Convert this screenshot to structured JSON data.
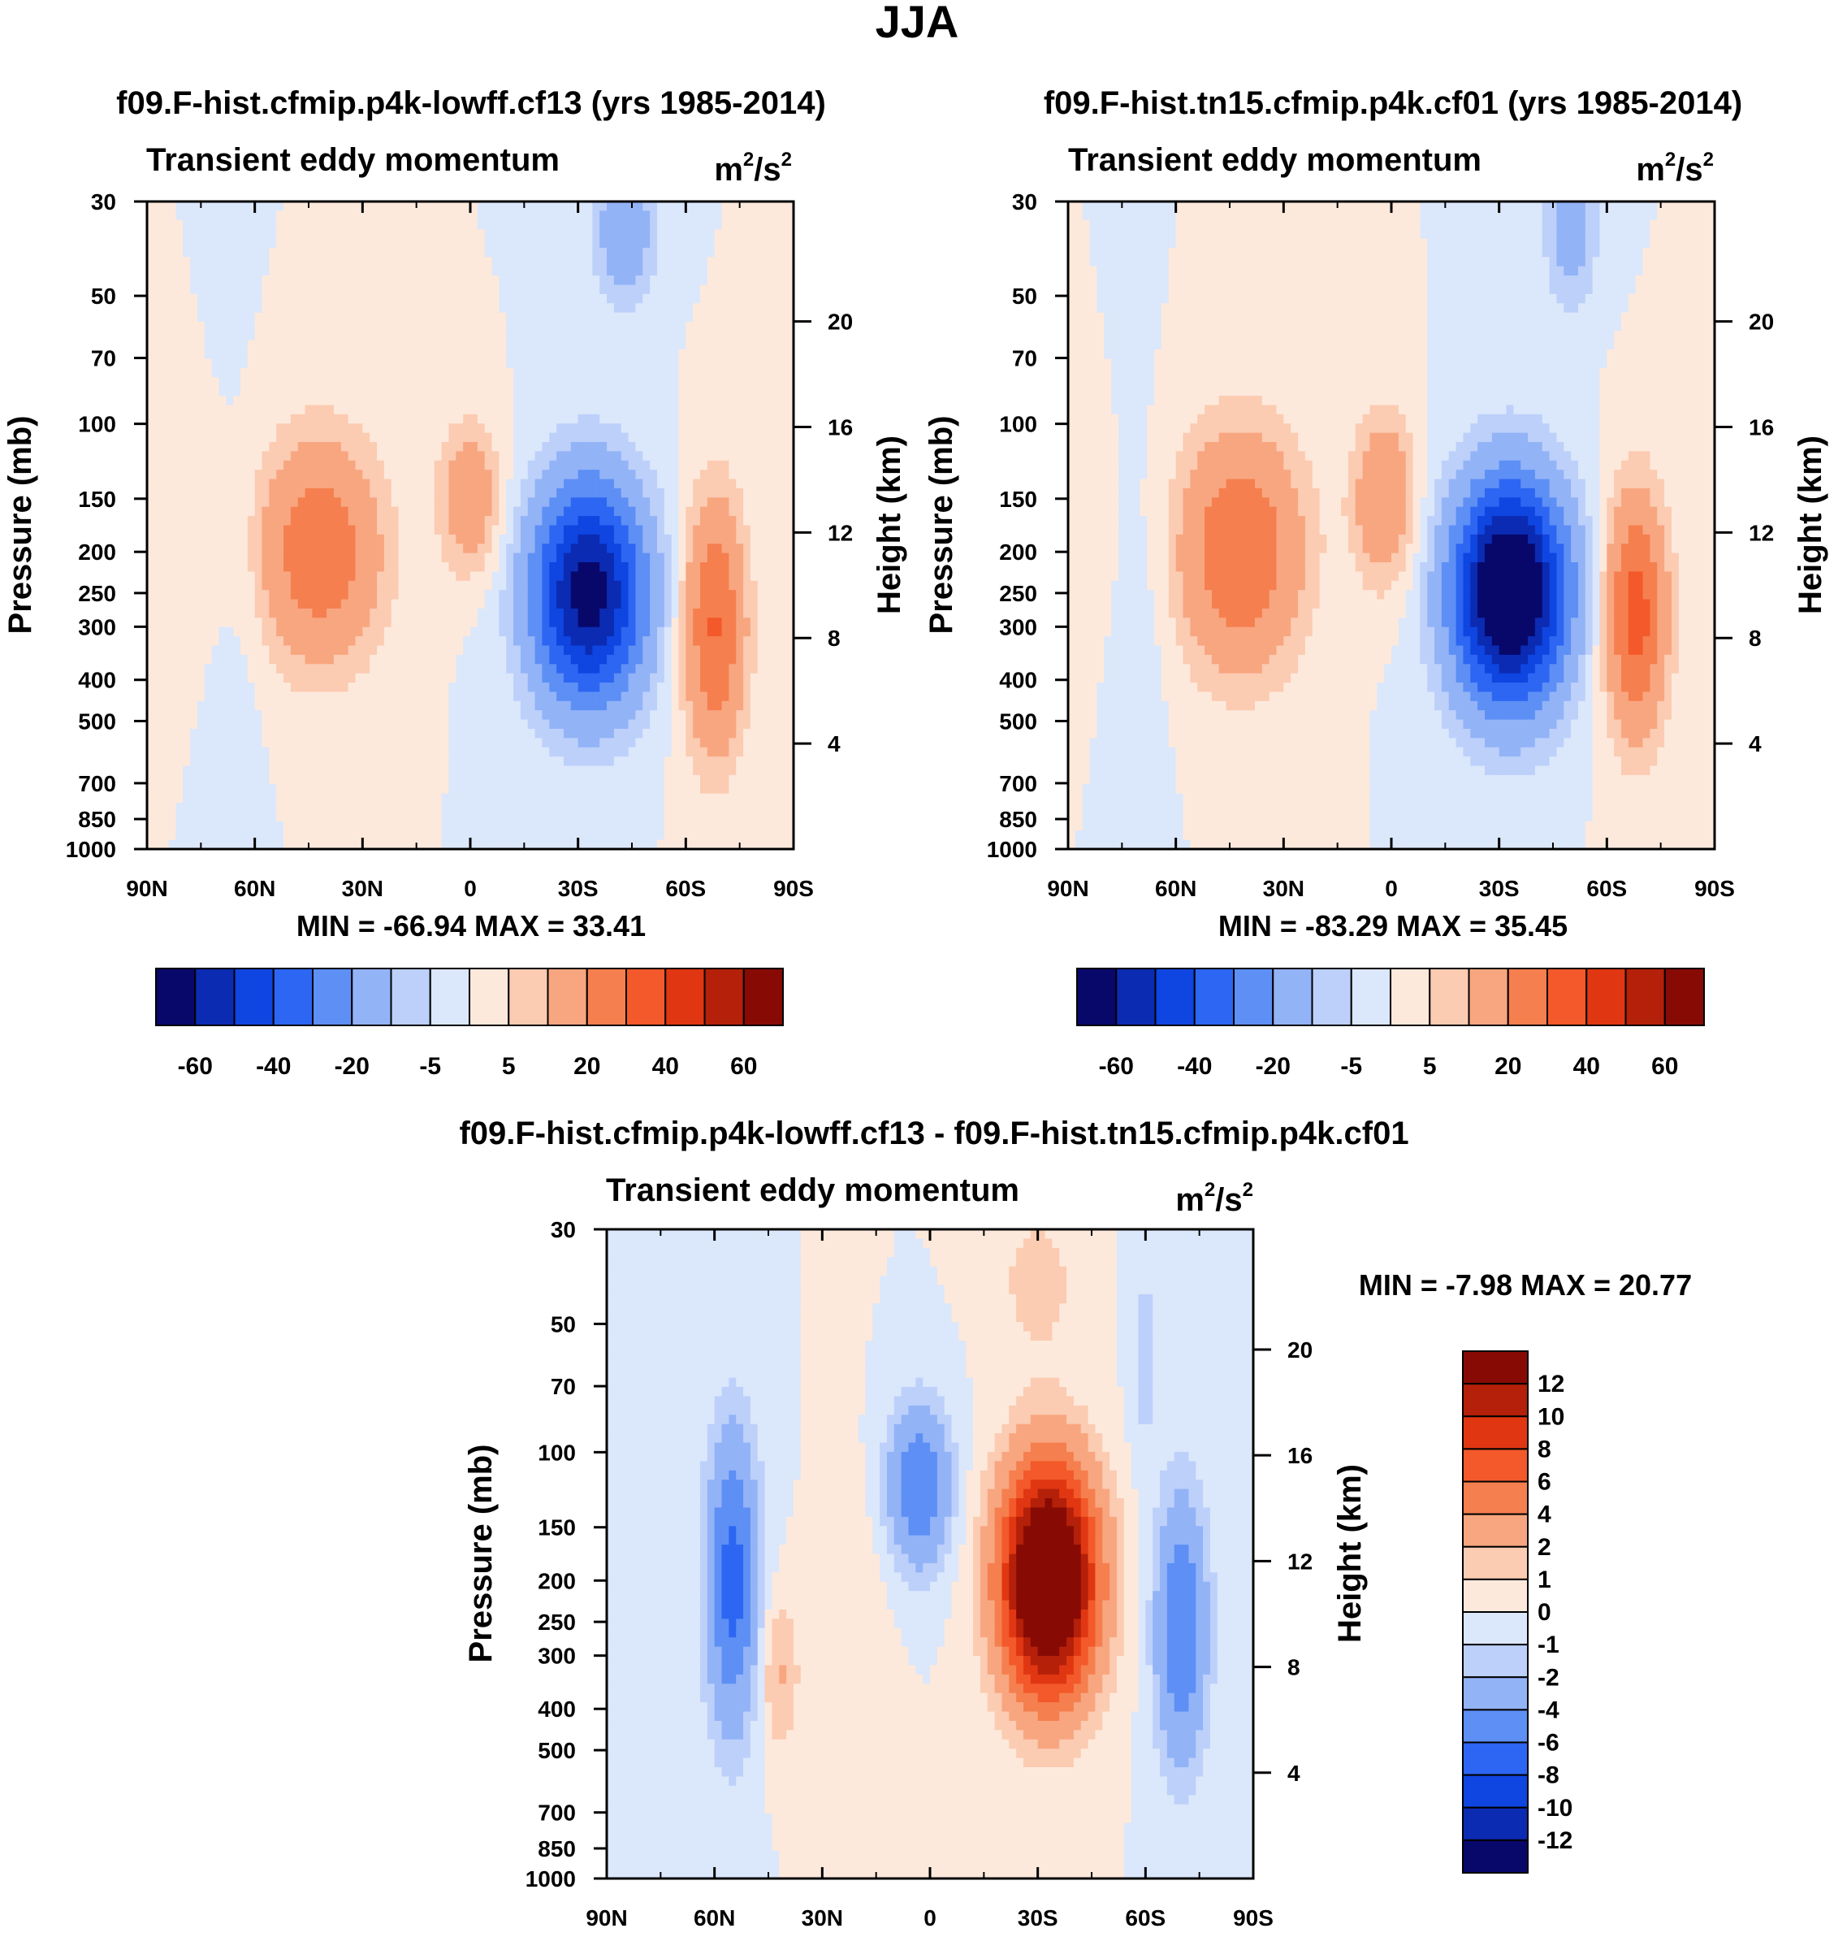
{
  "figure_title": "JJA",
  "colors": {
    "diverging_14": [
      "#08086b",
      "#0b2bb3",
      "#0f45e0",
      "#2c66f2",
      "#5d8ff5",
      "#93b3f7",
      "#bcd0fa",
      "#dbe7fb",
      "#fde9db",
      "#fbcbb2",
      "#f8a680",
      "#f57f4f",
      "#f3592a",
      "#e03712",
      "#b42009",
      "#870b04"
    ],
    "panel_bg": "#fde9db"
  },
  "chart_data": [
    {
      "type": "heatmap",
      "title": "f09.F-hist.cfmip.p4k-lowff.cf13 (yrs 1985-2014)",
      "subtitle_left": "Transient eddy momentum",
      "units": "m²/s²",
      "units_base": "m",
      "units_mid": "/s",
      "units_exp": "2",
      "ylabel": "Pressure (mb)",
      "y2label": "Height (km)",
      "xticks": [
        "90N",
        "60N",
        "30N",
        "0",
        "30S",
        "60S",
        "90S"
      ],
      "x_values": [
        90,
        60,
        30,
        0,
        -30,
        -60,
        -90
      ],
      "yticks": [
        30,
        50,
        70,
        100,
        150,
        200,
        250,
        300,
        400,
        500,
        700,
        850,
        1000
      ],
      "ylim": [
        1000,
        30
      ],
      "y2ticks": [
        20,
        16,
        12,
        8,
        4
      ],
      "minmax_text": "MIN = -66.94  MAX =  33.41",
      "min": -66.94,
      "max": 33.41,
      "colorbar_labels": [
        "-60",
        "-40",
        "-20",
        "-5",
        "5",
        "20",
        "40",
        "60"
      ],
      "colorbar_levels": [
        -70,
        -60,
        -50,
        -40,
        -30,
        -20,
        -10,
        -5,
        0,
        5,
        10,
        20,
        30,
        40,
        50,
        60,
        70
      ],
      "blobs": [
        {
          "lat": 42,
          "p": 200,
          "amp": 28,
          "wlat": 12,
          "wlog": 0.42
        },
        {
          "lat": 0,
          "p": 150,
          "amp": 18,
          "wlat": 6,
          "wlog": 0.28
        },
        {
          "lat": -33,
          "p": 250,
          "amp": -66,
          "wlat": 11,
          "wlog": 0.42
        },
        {
          "lat": -68,
          "p": 300,
          "amp": 31,
          "wlat": 6,
          "wlog": 0.48
        },
        {
          "lat": -43,
          "p": 35,
          "amp": -18,
          "wlat": 6,
          "wlog": 0.28
        },
        {
          "lat": 63,
          "p": 250,
          "amp": -3,
          "wlat": 5,
          "wlog": 0.6
        }
      ]
    },
    {
      "type": "heatmap",
      "title": "f09.F-hist.tn15.cfmip.p4k.cf01 (yrs 1985-2014)",
      "subtitle_left": "Transient eddy momentum",
      "units": "m²/s²",
      "units_base": "m",
      "units_mid": "/s",
      "units_exp": "2",
      "ylabel": "Pressure (mb)",
      "y2label": "Height (km)",
      "xticks": [
        "90N",
        "60N",
        "30N",
        "0",
        "30S",
        "60S",
        "90S"
      ],
      "x_values": [
        90,
        60,
        30,
        0,
        -30,
        -60,
        -90
      ],
      "yticks": [
        30,
        50,
        70,
        100,
        150,
        200,
        250,
        300,
        400,
        500,
        700,
        850,
        1000
      ],
      "ylim": [
        1000,
        30
      ],
      "y2ticks": [
        20,
        16,
        12,
        8,
        4
      ],
      "minmax_text": "MIN = -83.29  MAX =  35.45",
      "min": -83.29,
      "max": 35.45,
      "colorbar_labels": [
        "-60",
        "-40",
        "-20",
        "-5",
        "5",
        "20",
        "40",
        "60"
      ],
      "colorbar_levels": [
        -70,
        -60,
        -50,
        -40,
        -30,
        -20,
        -10,
        -5,
        0,
        5,
        10,
        20,
        30,
        40,
        50,
        60,
        70
      ],
      "blobs": [
        {
          "lat": 42,
          "p": 200,
          "amp": 30,
          "wlat": 12,
          "wlog": 0.45
        },
        {
          "lat": 2,
          "p": 150,
          "amp": 20,
          "wlat": 6,
          "wlog": 0.32
        },
        {
          "lat": -33,
          "p": 250,
          "amp": -83,
          "wlat": 11,
          "wlog": 0.42
        },
        {
          "lat": -68,
          "p": 280,
          "amp": 35,
          "wlat": 6,
          "wlog": 0.45
        },
        {
          "lat": -50,
          "p": 35,
          "amp": -16,
          "wlat": 5,
          "wlog": 0.28
        },
        {
          "lat": 67,
          "p": 250,
          "amp": -3,
          "wlat": 5,
          "wlog": 0.6
        }
      ]
    },
    {
      "type": "heatmap",
      "title": "f09.F-hist.cfmip.p4k-lowff.cf13 - f09.F-hist.tn15.cfmip.p4k.cf01",
      "subtitle_left": "Transient eddy momentum",
      "units": "m²/s²",
      "units_base": "m",
      "units_mid": "/s",
      "units_exp": "2",
      "ylabel": "Pressure (mb)",
      "y2label": "Height (km)",
      "xticks": [
        "90N",
        "60N",
        "30N",
        "0",
        "30S",
        "60S",
        "90S"
      ],
      "x_values": [
        90,
        60,
        30,
        0,
        -30,
        -60,
        -90
      ],
      "yticks": [
        30,
        50,
        70,
        100,
        150,
        200,
        250,
        300,
        400,
        500,
        700,
        850,
        1000
      ],
      "ylim": [
        1000,
        30
      ],
      "y2ticks": [
        20,
        16,
        12,
        8,
        4
      ],
      "minmax_text": "MIN =  -7.98  MAX =  20.77",
      "min": -7.98,
      "max": 20.77,
      "colorbar_labels": [
        "12",
        "10",
        "8",
        "6",
        "4",
        "2",
        "1",
        "0",
        "-1",
        "-2",
        "-4",
        "-6",
        "-8",
        "-10",
        "-12"
      ],
      "colorbar_levels": [
        -14,
        -12,
        -10,
        -8,
        -6,
        -4,
        -2,
        -1,
        0,
        1,
        2,
        4,
        6,
        8,
        10,
        12,
        14
      ],
      "blobs": [
        {
          "lat": 55,
          "p": 200,
          "amp": -7,
          "wlat": 5,
          "wlog": 0.55
        },
        {
          "lat": 3,
          "p": 120,
          "amp": -6,
          "wlat": 6,
          "wlog": 0.3
        },
        {
          "lat": -33,
          "p": 200,
          "amp": 20,
          "wlat": 9,
          "wlog": 0.42
        },
        {
          "lat": -70,
          "p": 260,
          "amp": -6,
          "wlat": 5,
          "wlog": 0.5
        },
        {
          "lat": 42,
          "p": 330,
          "amp": 2.2,
          "wlat": 4,
          "wlog": 0.3
        },
        {
          "lat": 20,
          "p": 300,
          "amp": 0.8,
          "wlat": 6,
          "wlog": 0.6
        },
        {
          "lat": -30,
          "p": 40,
          "amp": 1.5,
          "wlat": 8,
          "wlog": 0.3
        },
        {
          "lat": -60,
          "p": 60,
          "amp": -1.5,
          "wlat": 3,
          "wlog": 0.4
        }
      ]
    }
  ]
}
